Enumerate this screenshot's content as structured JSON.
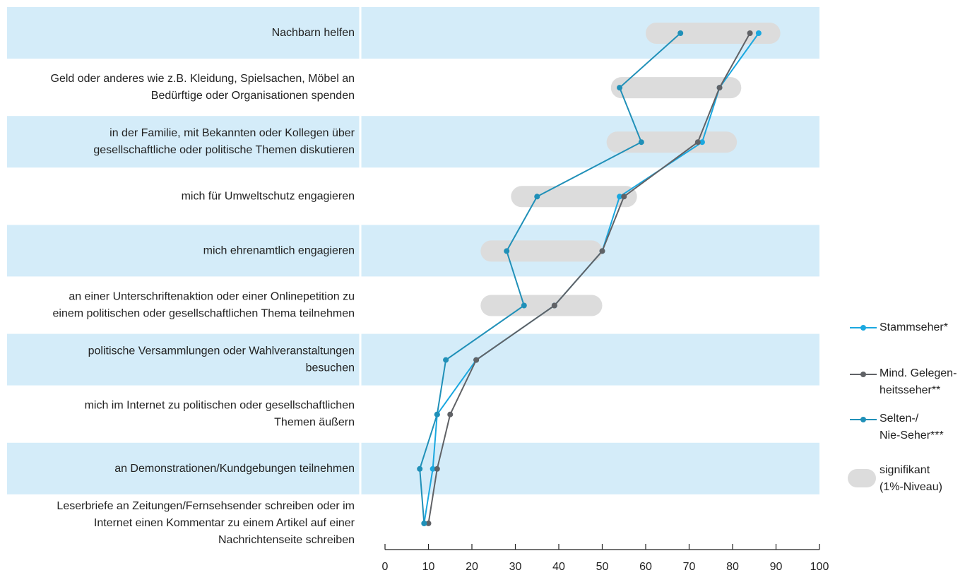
{
  "chart_data": {
    "type": "line",
    "categories": [
      "Nachbarn helfen",
      "Geld oder anderes wie z.B. Kleidung, Spielsachen, Möbel an\nBedürftige oder Organisationen spenden",
      "in der Familie, mit Bekannten oder Kollegen über\ngesellschaftliche oder politische Themen diskutieren",
      "mich für Umweltschutz engagieren",
      "mich ehrenamtlich engagieren",
      "an einer Unterschriftenaktion oder einer Onlinepetition zu\neinem politischen oder gesellschaftlichen Thema teilnehmen",
      "politische Versammlungen oder Wahlveranstaltungen\nbesuchen",
      "mich im Internet zu politischen oder gesellschaftlichen\nThemen äußern",
      "an Demonstrationen/Kundgebungen teilnehmen",
      "Leserbriefe an Zeitungen/Fernsehsender schreiben oder im\nInternet einen Kommentar zu einem Artikel auf einer\nNachrichtenseite schreiben"
    ],
    "series": [
      {
        "name": "Stammseher*",
        "color": "#1ba8e0",
        "values": [
          86,
          77,
          73,
          54,
          50,
          39,
          21,
          12,
          11,
          9
        ]
      },
      {
        "name": "Mind. Gelegen-\nheitsseher**",
        "color": "#606266",
        "values": [
          84,
          77,
          72,
          55,
          50,
          39,
          21,
          15,
          12,
          10
        ]
      },
      {
        "name": "Selten-/\nNie-Seher***",
        "color": "#2090b8",
        "values": [
          68,
          54,
          59,
          35,
          28,
          32,
          14,
          12,
          8,
          9
        ]
      }
    ],
    "significance_name": "signifikant\n(1%-Niveau)",
    "significance_color": "#dcdcdc",
    "significance_ranges": [
      [
        60,
        91
      ],
      [
        52,
        82
      ],
      [
        51,
        81
      ],
      [
        29,
        58
      ],
      [
        22,
        50
      ],
      [
        22,
        50
      ],
      null,
      null,
      null,
      null
    ],
    "xlim": [
      0,
      100
    ],
    "xticks": [
      0,
      10,
      20,
      30,
      40,
      50,
      60,
      70,
      80,
      90,
      100
    ]
  }
}
